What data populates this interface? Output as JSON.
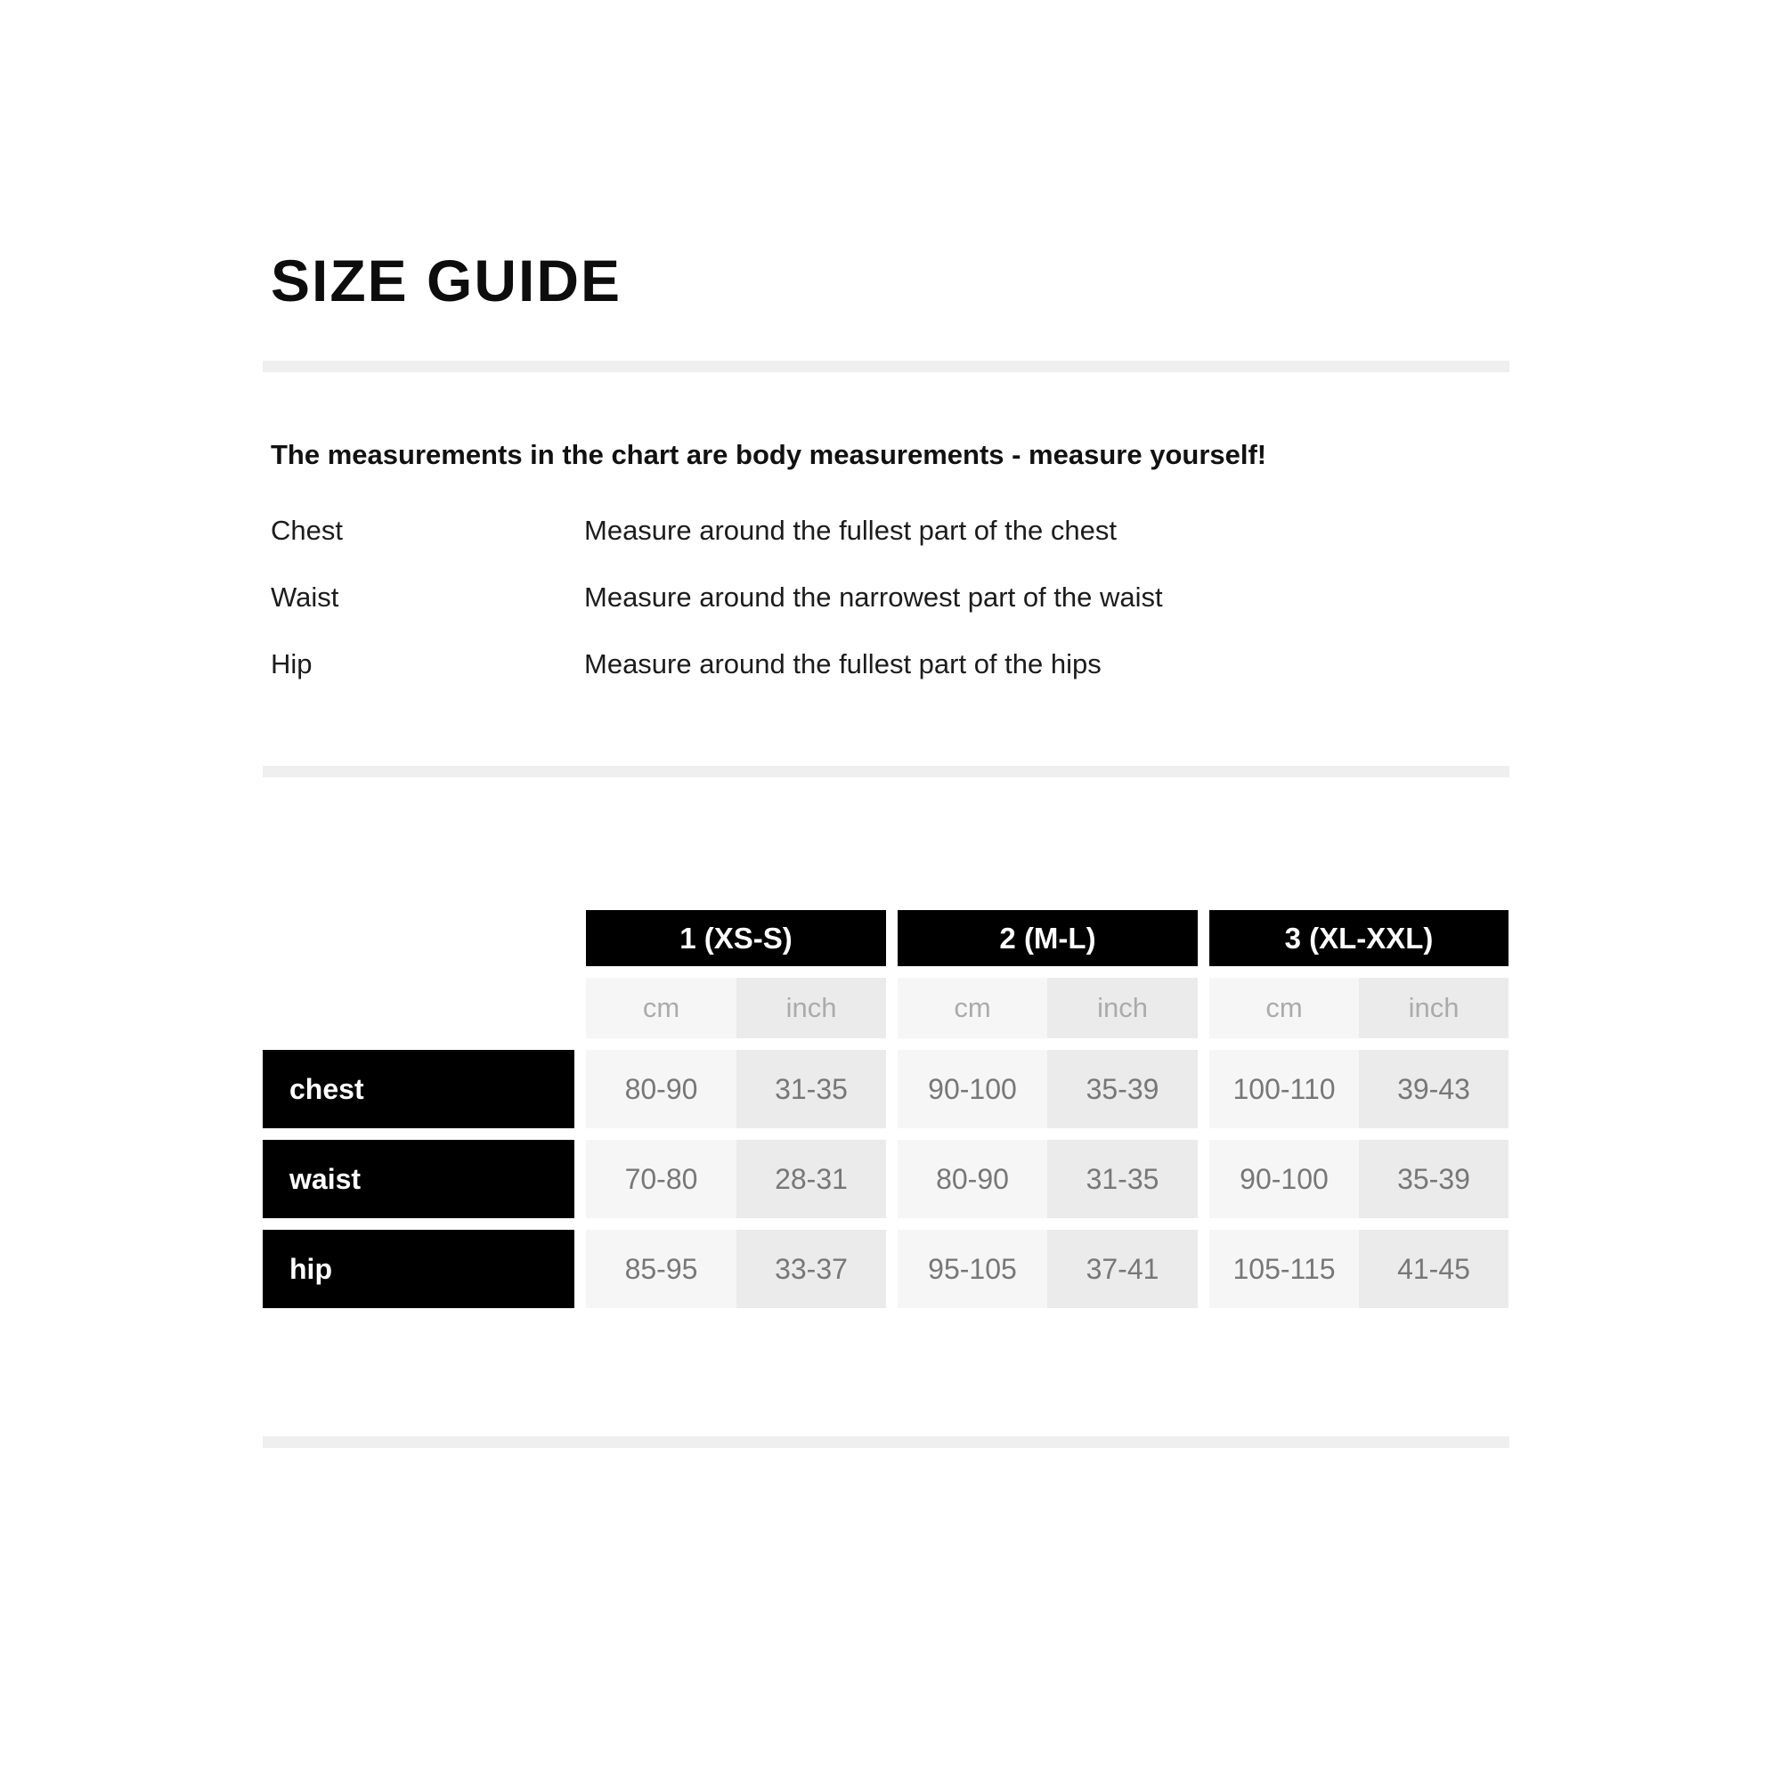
{
  "page": {
    "title": "SIZE GUIDE"
  },
  "intro": {
    "heading": "The measurements in the chart are body measurements - measure yourself!"
  },
  "definitions": [
    {
      "label": "Chest",
      "description": "Measure around the fullest part of the chest"
    },
    {
      "label": "Waist",
      "description": "Measure around the narrowest part of the waist"
    },
    {
      "label": "Hip",
      "description": "Measure around the fullest part of the hips"
    }
  ],
  "size_table": {
    "groups": [
      {
        "label": "1 (XS-S)"
      },
      {
        "label": "2 (M-L)"
      },
      {
        "label": "3 (XL-XXL)"
      }
    ],
    "unit_labels": {
      "cm": "cm",
      "inch": "inch"
    },
    "rows": [
      {
        "label": "chest",
        "values": [
          "80-90",
          "31-35",
          "90-100",
          "35-39",
          "100-110",
          "39-43"
        ]
      },
      {
        "label": "waist",
        "values": [
          "70-80",
          "28-31",
          "80-90",
          "31-35",
          "90-100",
          "35-39"
        ]
      },
      {
        "label": "hip",
        "values": [
          "85-95",
          "33-37",
          "95-105",
          "37-41",
          "105-115",
          "41-45"
        ]
      }
    ]
  },
  "colors": {
    "header_bg": "#000000",
    "header_text": "#ffffff",
    "cm_cell_bg": "#f6f6f6",
    "inch_cell_bg": "#ebebeb",
    "value_text": "#777777",
    "unit_text": "#ababab",
    "divider": "#efefef",
    "page_bg": "#ffffff"
  }
}
